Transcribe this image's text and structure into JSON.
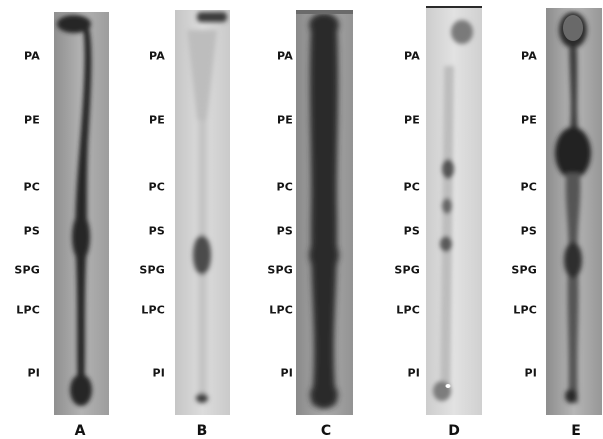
{
  "lipid_labels": [
    "PA",
    "PE",
    "PC",
    "PS",
    "SPG",
    "LPC",
    "PI"
  ],
  "panels": [
    {
      "id": "A",
      "label": "A"
    },
    {
      "id": "B",
      "label": "B"
    },
    {
      "id": "C",
      "label": "C"
    },
    {
      "id": "D",
      "label": "D"
    },
    {
      "id": "E",
      "label": "E"
    }
  ]
}
